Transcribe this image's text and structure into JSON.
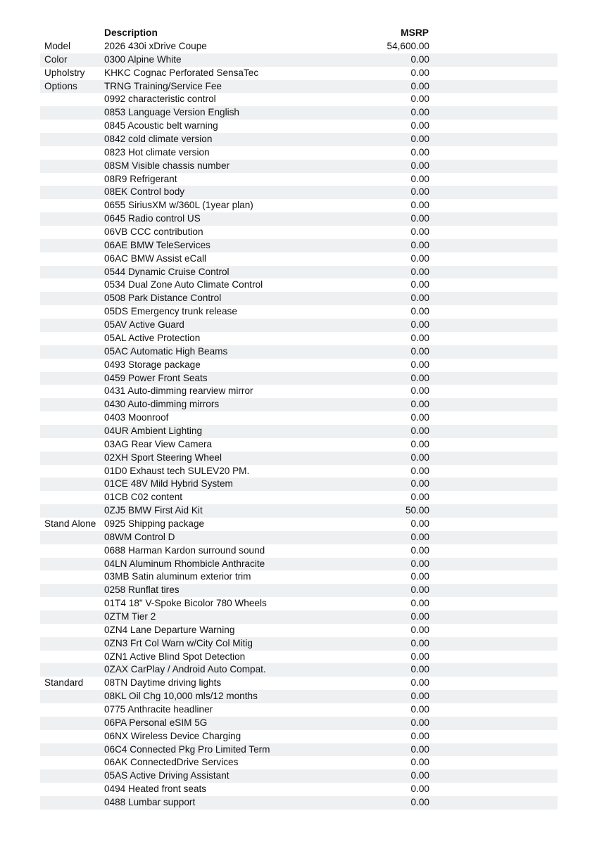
{
  "header": {
    "description": "Description",
    "msrp": "MSRP"
  },
  "rows": [
    {
      "category": "Model",
      "description": "2026 430i xDrive Coupe",
      "msrp": "54,600.00"
    },
    {
      "category": "Color",
      "description": "0300 Alpine White",
      "msrp": "0.00"
    },
    {
      "category": "Upholstry",
      "description": "KHKC Cognac Perforated SensaTec",
      "msrp": "0.00"
    },
    {
      "category": "Options",
      "description": "TRNG Training/Service Fee",
      "msrp": "0.00"
    },
    {
      "category": "",
      "description": "0992 characteristic control",
      "msrp": "0.00"
    },
    {
      "category": "",
      "description": "0853 Language Version English",
      "msrp": "0.00"
    },
    {
      "category": "",
      "description": "0845 Acoustic belt warning",
      "msrp": "0.00"
    },
    {
      "category": "",
      "description": "0842 cold climate version",
      "msrp": "0.00"
    },
    {
      "category": "",
      "description": "0823 Hot climate version",
      "msrp": "0.00"
    },
    {
      "category": "",
      "description": "08SM Visible chassis number",
      "msrp": "0.00"
    },
    {
      "category": "",
      "description": "08R9 Refrigerant",
      "msrp": "0.00"
    },
    {
      "category": "",
      "description": "08EK Control body",
      "msrp": "0.00"
    },
    {
      "category": "",
      "description": "0655 SiriusXM w/360L (1year plan)",
      "msrp": "0.00"
    },
    {
      "category": "",
      "description": "0645 Radio control US",
      "msrp": "0.00"
    },
    {
      "category": "",
      "description": "06VB CCC contribution",
      "msrp": "0.00"
    },
    {
      "category": "",
      "description": "06AE BMW TeleServices",
      "msrp": "0.00"
    },
    {
      "category": "",
      "description": "06AC BMW Assist eCall",
      "msrp": "0.00"
    },
    {
      "category": "",
      "description": "0544 Dynamic Cruise Control",
      "msrp": "0.00"
    },
    {
      "category": "",
      "description": "0534 Dual Zone Auto Climate Control",
      "msrp": "0.00"
    },
    {
      "category": "",
      "description": "0508 Park Distance Control",
      "msrp": "0.00"
    },
    {
      "category": "",
      "description": "05DS Emergency trunk release",
      "msrp": "0.00"
    },
    {
      "category": "",
      "description": "05AV Active Guard",
      "msrp": "0.00"
    },
    {
      "category": "",
      "description": "05AL Active Protection",
      "msrp": "0.00"
    },
    {
      "category": "",
      "description": "05AC Automatic High Beams",
      "msrp": "0.00"
    },
    {
      "category": "",
      "description": "0493 Storage package",
      "msrp": "0.00"
    },
    {
      "category": "",
      "description": "0459 Power Front Seats",
      "msrp": "0.00"
    },
    {
      "category": "",
      "description": "0431 Auto-dimming rearview mirror",
      "msrp": "0.00"
    },
    {
      "category": "",
      "description": "0430 Auto-dimming mirrors",
      "msrp": "0.00"
    },
    {
      "category": "",
      "description": "0403 Moonroof",
      "msrp": "0.00"
    },
    {
      "category": "",
      "description": "04UR Ambient Lighting",
      "msrp": "0.00"
    },
    {
      "category": "",
      "description": "03AG Rear View Camera",
      "msrp": "0.00"
    },
    {
      "category": "",
      "description": "02XH Sport Steering Wheel",
      "msrp": "0.00"
    },
    {
      "category": "",
      "description": "01D0 Exhaust tech SULEV20 PM.",
      "msrp": "0.00"
    },
    {
      "category": "",
      "description": "01CE 48V Mild Hybrid System",
      "msrp": "0.00"
    },
    {
      "category": "",
      "description": "01CB C02 content",
      "msrp": "0.00"
    },
    {
      "category": "",
      "description": "0ZJ5 BMW First Aid Kit",
      "msrp": "50.00"
    },
    {
      "category": "Stand Alone",
      "description": "0925 Shipping package",
      "msrp": "0.00"
    },
    {
      "category": "",
      "description": "08WM Control D",
      "msrp": "0.00"
    },
    {
      "category": "",
      "description": "0688 Harman Kardon surround sound",
      "msrp": "0.00"
    },
    {
      "category": "",
      "description": "04LN Aluminum Rhombicle Anthracite",
      "msrp": "0.00"
    },
    {
      "category": "",
      "description": "03MB Satin aluminum exterior trim",
      "msrp": "0.00"
    },
    {
      "category": "",
      "description": "0258 Runflat tires",
      "msrp": "0.00"
    },
    {
      "category": "",
      "description": "01T4 18\" V-Spoke Bicolor 780 Wheels",
      "msrp": "0.00"
    },
    {
      "category": "",
      "description": "0ZTM Tier 2",
      "msrp": "0.00"
    },
    {
      "category": "",
      "description": "0ZN4 Lane Departure Warning",
      "msrp": "0.00"
    },
    {
      "category": "",
      "description": "0ZN3 Frt Col Warn w/City Col Mitig",
      "msrp": "0.00"
    },
    {
      "category": "",
      "description": "0ZN1 Active Blind Spot Detection",
      "msrp": "0.00"
    },
    {
      "category": "",
      "description": "0ZAX CarPlay / Android Auto Compat.",
      "msrp": "0.00"
    },
    {
      "category": "Standard",
      "description": "08TN Daytime driving lights",
      "msrp": "0.00"
    },
    {
      "category": "",
      "description": "08KL Oil Chg 10,000 mls/12 months",
      "msrp": "0.00"
    },
    {
      "category": "",
      "description": "0775 Anthracite headliner",
      "msrp": "0.00"
    },
    {
      "category": "",
      "description": "06PA Personal eSIM 5G",
      "msrp": "0.00"
    },
    {
      "category": "",
      "description": "06NX Wireless Device Charging",
      "msrp": "0.00"
    },
    {
      "category": "",
      "description": "06C4 Connected Pkg Pro Limited Term",
      "msrp": "0.00"
    },
    {
      "category": "",
      "description": "06AK ConnectedDrive Services",
      "msrp": "0.00"
    },
    {
      "category": "",
      "description": "05AS Active Driving Assistant",
      "msrp": "0.00"
    },
    {
      "category": "",
      "description": "0494 Heated front seats",
      "msrp": "0.00"
    },
    {
      "category": "",
      "description": "0488 Lumbar support",
      "msrp": "0.00"
    }
  ]
}
